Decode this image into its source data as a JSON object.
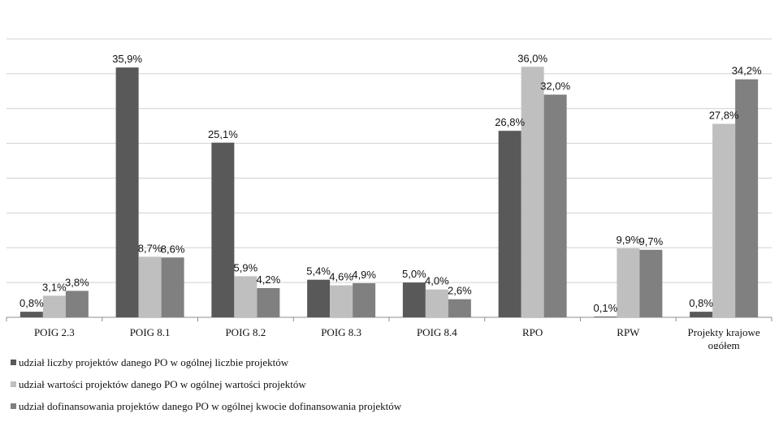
{
  "chart_data": {
    "type": "bar",
    "categories": [
      "POIG 2.3",
      "POIG 8.1",
      "POIG 8.2",
      "POIG 8.3",
      "POIG 8.4",
      "RPO",
      "RPW",
      "Projekty krajowe ogółem"
    ],
    "series": [
      {
        "name": "udział liczby projektów danego PO w ogólnej liczbie projektów",
        "values": [
          0.8,
          35.9,
          25.1,
          5.4,
          5.0,
          26.8,
          0.1,
          0.8
        ],
        "labels": [
          "0,8%",
          "35,9%",
          "25,1%",
          "5,4%",
          "5,0%",
          "26,8%",
          "0,1%",
          "0,8%"
        ],
        "color": "#595959"
      },
      {
        "name": "udział wartości projektów danego PO w ogólnej wartości projektów",
        "values": [
          3.1,
          8.7,
          5.9,
          4.6,
          4.0,
          36.0,
          9.9,
          27.8
        ],
        "labels": [
          "3,1%",
          "8,7%",
          "5,9%",
          "4,6%",
          "4,0%",
          "36,0%",
          "9,9%",
          "27,8%"
        ],
        "color": "#bfbfbf"
      },
      {
        "name": "udział dofinansowania projektów danego PO w ogólnej kwocie dofinansowania projektów",
        "values": [
          3.8,
          8.6,
          4.2,
          4.9,
          2.6,
          32.0,
          9.7,
          34.2
        ],
        "labels": [
          "3,8%",
          "8,6%",
          "4,2%",
          "4,9%",
          "2,6%",
          "32,0%",
          "9,7%",
          "34,2%"
        ],
        "color": "#808080"
      }
    ],
    "ylim": [
      0,
      40
    ],
    "grid": true,
    "legend_position": "bottom-left"
  }
}
